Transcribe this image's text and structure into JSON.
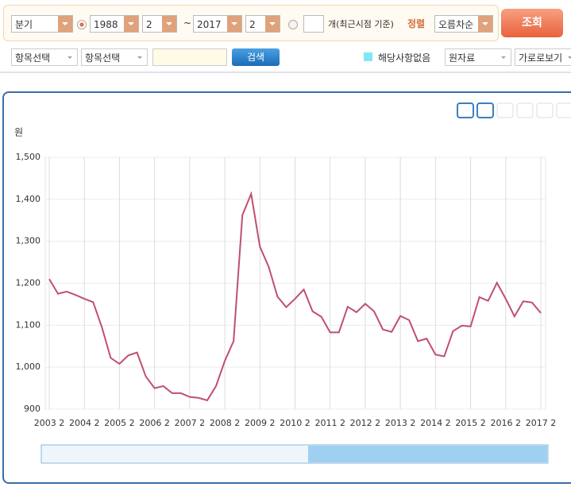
{
  "controls": {
    "period": "분기",
    "start_year": "1988",
    "start_sub": "2",
    "range_sep": "~",
    "end_year": "2017",
    "end_sub": "2",
    "recent_label": "개(최근시점 기준)",
    "sort_label": "정렬",
    "sort": "오름차순",
    "search_button": "조회",
    "item1": "항목선택",
    "item2": "항목선택",
    "find_button": "검색",
    "none_label": "해당사항없음",
    "raw": "원자료",
    "view": "가로로보기"
  },
  "chart_data": {
    "type": "line",
    "y_label": "원",
    "categories": [
      "2003 2",
      null,
      null,
      null,
      "2004 2",
      null,
      null,
      null,
      "2005 2",
      null,
      null,
      null,
      "2006 2",
      null,
      null,
      null,
      "2007 2",
      null,
      null,
      null,
      "2008 2",
      null,
      null,
      null,
      "2009 2",
      null,
      null,
      null,
      "2010 2",
      null,
      null,
      null,
      "2011 2",
      null,
      null,
      null,
      "2012 2",
      null,
      null,
      null,
      "2013 2",
      null,
      null,
      null,
      "2014 2",
      null,
      null,
      null,
      "2015 2",
      null,
      null,
      null,
      "2016 2",
      null,
      null,
      null,
      "2017 2"
    ],
    "values": [
      1210,
      1175,
      1180,
      1172,
      1163,
      1155,
      1095,
      1022,
      1008,
      1028,
      1035,
      978,
      950,
      955,
      938,
      938,
      929,
      927,
      921,
      955,
      1015,
      1062,
      1362,
      1413,
      1287,
      1239,
      1168,
      1143,
      1163,
      1185,
      1133,
      1120,
      1083,
      1083,
      1144,
      1131,
      1151,
      1133,
      1090,
      1084,
      1122,
      1112,
      1062,
      1068,
      1030,
      1026,
      1086,
      1099,
      1097,
      1167,
      1158,
      1201,
      1163,
      1121,
      1157,
      1154,
      1129
    ],
    "color": "#c0506e",
    "ylim": [
      900,
      1500
    ],
    "yticks": [
      900,
      {
        "value": 1000,
        "label": "1,000"
      },
      {
        "value": 1100,
        "label": "1,100"
      },
      {
        "value": 1200,
        "label": "1,200"
      },
      {
        "value": 1300,
        "label": "1,300"
      },
      {
        "value": 1400,
        "label": "1,400"
      },
      {
        "value": 1500,
        "label": "1,500"
      }
    ],
    "grid": true
  }
}
